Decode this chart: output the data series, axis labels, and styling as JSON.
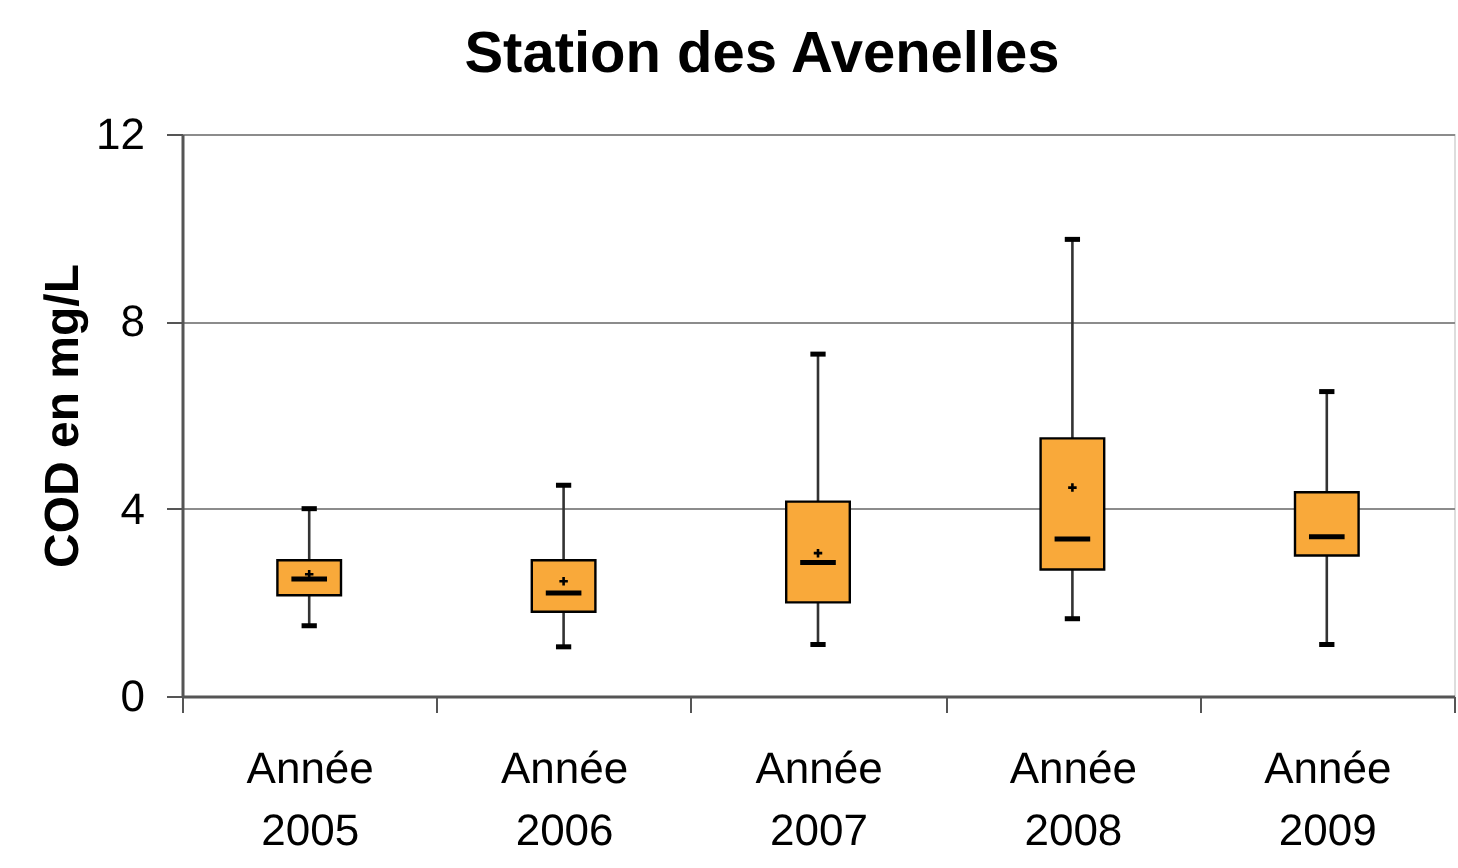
{
  "chart_data": {
    "type": "box",
    "title": "Station des Avenelles",
    "ylabel": "COD  en mg/L",
    "categories": [
      "Année 2005",
      "Année 2006",
      "Année 2007",
      "Année 2008",
      "Année 2009"
    ],
    "series": [
      {
        "color": "#f9a93a",
        "boxes": [
          {
            "low": 1.5,
            "q1": 2.15,
            "median": 2.5,
            "q3": 2.9,
            "high": 4.0,
            "mean": 2.6
          },
          {
            "low": 1.05,
            "q1": 1.8,
            "median": 2.2,
            "q3": 2.9,
            "high": 4.5,
            "mean": 2.45
          },
          {
            "low": 1.1,
            "q1": 2.0,
            "median": 2.85,
            "q3": 4.15,
            "high": 7.3,
            "mean": 3.05
          },
          {
            "low": 1.65,
            "q1": 2.7,
            "median": 3.35,
            "q3": 5.5,
            "high": 9.75,
            "mean": 4.45
          },
          {
            "low": 1.1,
            "q1": 3.0,
            "median": 3.4,
            "q3": 4.35,
            "high": 6.5
          }
        ]
      }
    ],
    "ylim": [
      0,
      12
    ],
    "yticks": [
      0,
      4,
      8,
      12
    ],
    "grid": "y"
  }
}
